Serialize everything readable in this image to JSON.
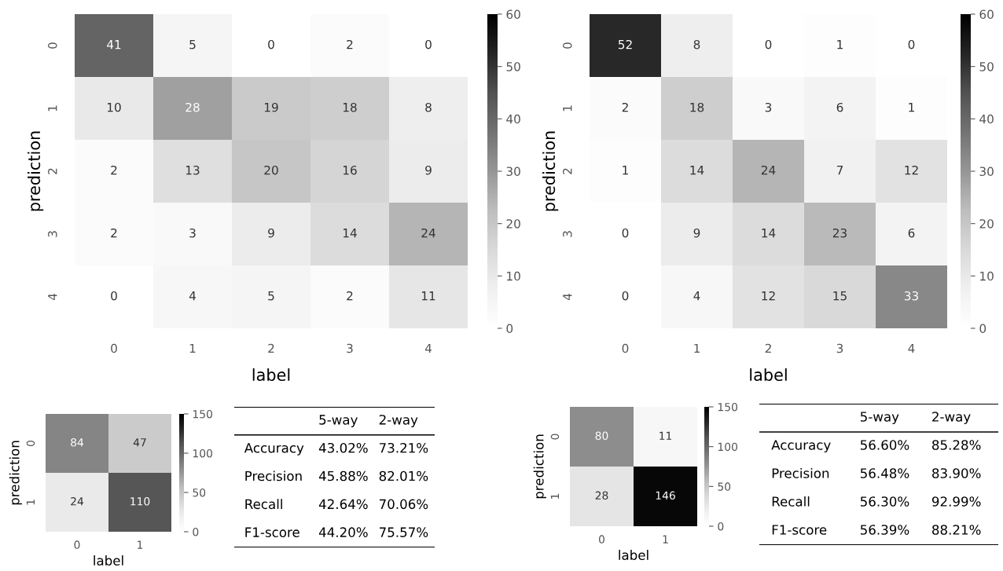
{
  "chart_data": [
    {
      "type": "heatmap",
      "categories": [
        "0",
        "1",
        "2",
        "3",
        "4"
      ],
      "y_categories": [
        "0",
        "1",
        "2",
        "3",
        "4"
      ],
      "xlabel": "label",
      "ylabel": "prediction",
      "data_labels": true,
      "clim": [
        0,
        60
      ],
      "cticks": [
        0,
        10,
        20,
        30,
        40,
        50,
        60
      ],
      "cells": [
        [
          41,
          5,
          0,
          2,
          0
        ],
        [
          10,
          28,
          19,
          18,
          8
        ],
        [
          2,
          13,
          20,
          16,
          9
        ],
        [
          2,
          3,
          9,
          14,
          24
        ],
        [
          0,
          4,
          5,
          2,
          11
        ]
      ]
    },
    {
      "type": "heatmap",
      "categories": [
        "0",
        "1",
        "2",
        "3",
        "4"
      ],
      "y_categories": [
        "0",
        "1",
        "2",
        "3",
        "4"
      ],
      "xlabel": "label",
      "ylabel": "prediction",
      "data_labels": true,
      "clim": [
        0,
        60
      ],
      "cticks": [
        0,
        10,
        20,
        30,
        40,
        50,
        60
      ],
      "cells": [
        [
          52,
          8,
          0,
          1,
          0
        ],
        [
          2,
          18,
          3,
          6,
          1
        ],
        [
          1,
          14,
          24,
          7,
          12
        ],
        [
          0,
          9,
          14,
          23,
          6
        ],
        [
          0,
          4,
          12,
          15,
          33
        ]
      ]
    },
    {
      "type": "heatmap",
      "categories": [
        "0",
        "1"
      ],
      "y_categories": [
        "0",
        "1"
      ],
      "xlabel": "label",
      "ylabel": "prediction",
      "data_labels": true,
      "clim": [
        0,
        150
      ],
      "cticks": [
        0,
        50,
        100,
        150
      ],
      "cells": [
        [
          84,
          47
        ],
        [
          24,
          110
        ]
      ]
    },
    {
      "type": "other",
      "categories": [
        "5-way",
        "2-way"
      ],
      "y_categories": [
        "Accuracy",
        "Precision",
        "Recall",
        "F1-score"
      ],
      "cell_labels": [
        [
          "43.02%",
          "73.21%"
        ],
        [
          "45.88%",
          "82.01%"
        ],
        [
          "42.64%",
          "70.06%"
        ],
        [
          "44.20%",
          "75.57%"
        ]
      ]
    },
    {
      "type": "heatmap",
      "categories": [
        "0",
        "1"
      ],
      "y_categories": [
        "0",
        "1"
      ],
      "xlabel": "label",
      "ylabel": "prediction",
      "data_labels": true,
      "clim": [
        0,
        150
      ],
      "cticks": [
        0,
        50,
        100,
        150
      ],
      "cells": [
        [
          80,
          11
        ],
        [
          28,
          146
        ]
      ]
    },
    {
      "type": "other",
      "categories": [
        "5-way",
        "2-way"
      ],
      "y_categories": [
        "Accuracy",
        "Precision",
        "Recall",
        "F1-score"
      ],
      "cell_labels": [
        [
          "56.60%",
          "85.28%"
        ],
        [
          "56.48%",
          "83.90%"
        ],
        [
          "56.30%",
          "92.99%"
        ],
        [
          "56.39%",
          "88.21%"
        ]
      ]
    }
  ]
}
